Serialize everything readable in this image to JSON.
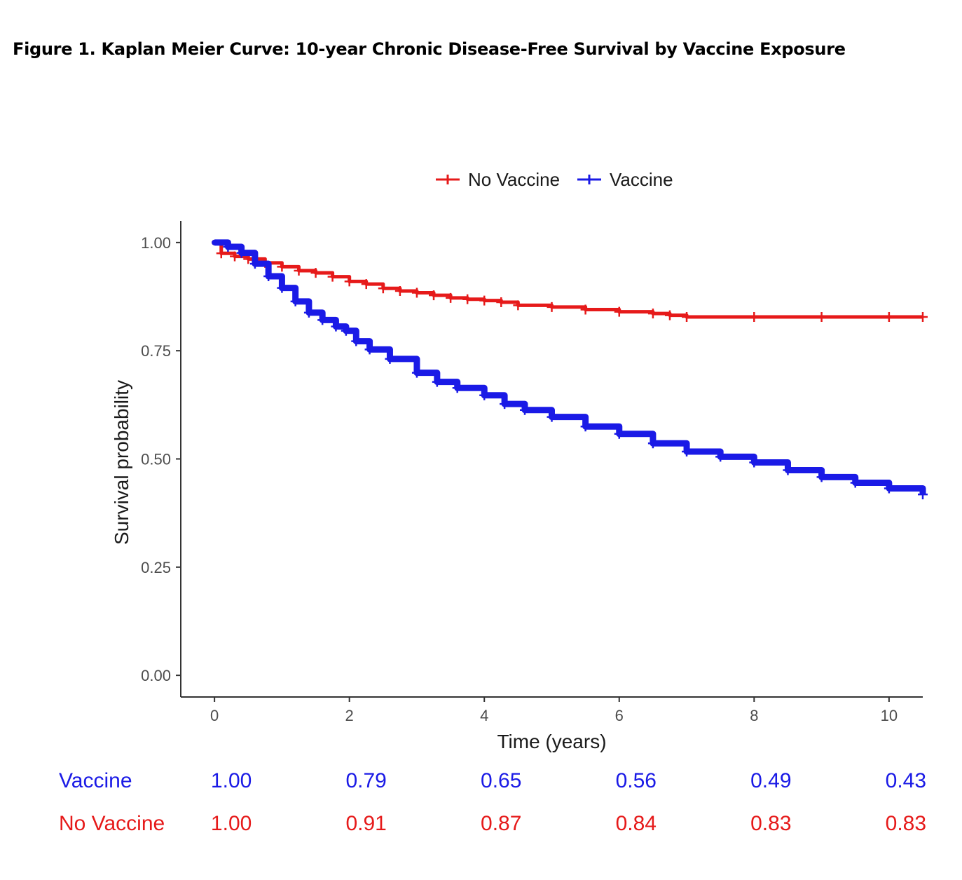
{
  "figure_title": "Figure 1. Kaplan Meier Curve: 10-year Chronic Disease-Free Survival by Vaccine Exposure",
  "colors": {
    "vaccine": "#1a1ae6",
    "no_vaccine": "#e61a1a",
    "axis": "#333333",
    "text": "#1a1a1a"
  },
  "chart_data": {
    "type": "line",
    "subtype": "kaplan-meier",
    "title": "",
    "xlabel": "Time (years)",
    "ylabel": "Survival probability",
    "xlim": [
      -0.5,
      10.5
    ],
    "ylim": [
      -0.05,
      1.05
    ],
    "x_ticks": [
      0,
      2,
      4,
      6,
      8,
      10
    ],
    "x_tick_labels": [
      "0",
      "2",
      "4",
      "6",
      "8",
      "10"
    ],
    "y_ticks": [
      0,
      0.25,
      0.5,
      0.75,
      1.0
    ],
    "y_tick_labels": [
      "0.00",
      "0.25",
      "0.50",
      "0.75",
      "1.00"
    ],
    "grid": false,
    "legend_position": "top",
    "series": [
      {
        "name": "No Vaccine",
        "color": "#e61a1a",
        "x": [
          0,
          0.1,
          0.3,
          0.5,
          0.75,
          1.0,
          1.25,
          1.5,
          1.75,
          2.0,
          2.25,
          2.5,
          2.75,
          3.0,
          3.25,
          3.5,
          3.75,
          4.0,
          4.25,
          4.5,
          5.0,
          5.5,
          6.0,
          6.5,
          6.75,
          7.0,
          8.0,
          9.0,
          10.0,
          10.5
        ],
        "y": [
          1.0,
          0.975,
          0.968,
          0.962,
          0.953,
          0.944,
          0.935,
          0.93,
          0.921,
          0.91,
          0.904,
          0.894,
          0.888,
          0.884,
          0.878,
          0.872,
          0.869,
          0.866,
          0.862,
          0.855,
          0.851,
          0.845,
          0.84,
          0.836,
          0.832,
          0.828,
          0.828,
          0.828,
          0.828,
          0.828
        ]
      },
      {
        "name": "Vaccine",
        "color": "#1a1ae6",
        "x": [
          0,
          0.2,
          0.4,
          0.6,
          0.8,
          1.0,
          1.2,
          1.4,
          1.6,
          1.8,
          1.95,
          2.1,
          2.3,
          2.6,
          3.0,
          3.3,
          3.6,
          4.0,
          4.3,
          4.6,
          5.0,
          5.5,
          6.0,
          6.5,
          7.0,
          7.5,
          8.0,
          8.5,
          9.0,
          9.5,
          10.0,
          10.5
        ],
        "y": [
          1.0,
          0.99,
          0.976,
          0.951,
          0.922,
          0.895,
          0.864,
          0.838,
          0.821,
          0.806,
          0.796,
          0.772,
          0.753,
          0.731,
          0.699,
          0.678,
          0.664,
          0.647,
          0.627,
          0.613,
          0.597,
          0.575,
          0.558,
          0.536,
          0.517,
          0.505,
          0.492,
          0.474,
          0.458,
          0.445,
          0.432,
          0.418
        ]
      }
    ]
  },
  "risk_table": {
    "times": [
      0,
      2,
      4,
      6,
      8,
      10
    ],
    "rows": [
      {
        "label": "Vaccine",
        "color": "#1a1ae6",
        "values": [
          "1.00",
          "0.79",
          "0.65",
          "0.56",
          "0.49",
          "0.43"
        ]
      },
      {
        "label": "No Vaccine",
        "color": "#e61a1a",
        "values": [
          "1.00",
          "0.91",
          "0.87",
          "0.84",
          "0.83",
          "0.83"
        ]
      }
    ]
  }
}
